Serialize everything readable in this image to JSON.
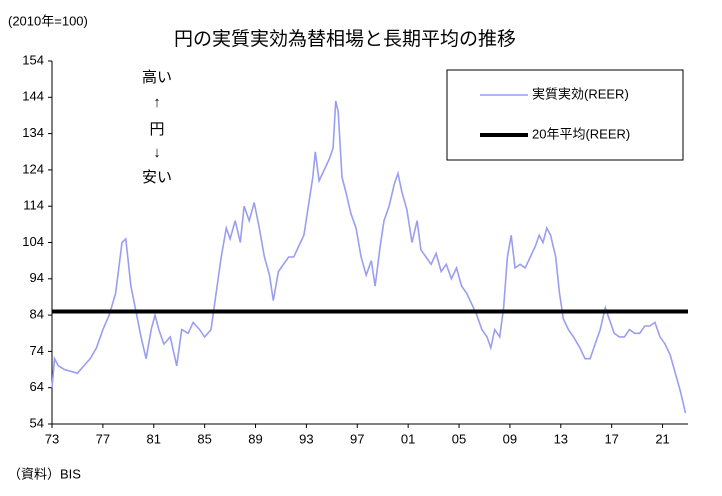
{
  "chart_data": {
    "type": "line",
    "title": "円の実質実効為替相場と長期平均の推移",
    "unit_label": "(2010年=100)",
    "source": "（資料）BIS",
    "annotations": [
      "高い",
      "↑",
      "円",
      "↓",
      "安い"
    ],
    "xlim": [
      1973,
      2023
    ],
    "xticks": [
      {
        "value": 1973,
        "label": "73"
      },
      {
        "value": 1977,
        "label": "77"
      },
      {
        "value": 1981,
        "label": "81"
      },
      {
        "value": 1985,
        "label": "85"
      },
      {
        "value": 1989,
        "label": "89"
      },
      {
        "value": 1993,
        "label": "93"
      },
      {
        "value": 1997,
        "label": "97"
      },
      {
        "value": 2001,
        "label": "01"
      },
      {
        "value": 2005,
        "label": "05"
      },
      {
        "value": 2009,
        "label": "09"
      },
      {
        "value": 2013,
        "label": "13"
      },
      {
        "value": 2017,
        "label": "17"
      },
      {
        "value": 2021,
        "label": "21"
      }
    ],
    "ylim": [
      54,
      154
    ],
    "yticks": [
      54,
      64,
      74,
      84,
      94,
      104,
      114,
      124,
      134,
      144,
      154
    ],
    "legend": "upper right",
    "series": [
      {
        "name": "実質実効(REER)",
        "color": "#9a9ef0",
        "x": [
          1973.0,
          1973.2,
          1973.5,
          1974,
          1975,
          1975.5,
          1976,
          1976.5,
          1977,
          1977.5,
          1978,
          1978.5,
          1978.8,
          1979.2,
          1979.6,
          1980.0,
          1980.4,
          1980.8,
          1981.1,
          1981.4,
          1981.8,
          1982.3,
          1982.8,
          1983.2,
          1983.7,
          1984.1,
          1984.6,
          1985.0,
          1985.5,
          1985.9,
          1986.3,
          1986.7,
          1987.0,
          1987.4,
          1987.8,
          1988.1,
          1988.5,
          1988.9,
          1989.3,
          1989.7,
          1990.1,
          1990.4,
          1990.8,
          1991.2,
          1991.6,
          1992.0,
          1992.4,
          1992.8,
          1993.2,
          1993.5,
          1993.7,
          1994.0,
          1994.4,
          1994.8,
          1995.1,
          1995.3,
          1995.5,
          1995.8,
          1996.1,
          1996.5,
          1996.9,
          1997.3,
          1997.7,
          1998.1,
          1998.4,
          1998.8,
          1999.1,
          1999.5,
          1999.9,
          2000.2,
          2000.5,
          2000.9,
          2001.3,
          2001.7,
          2002.0,
          2002.4,
          2002.8,
          2003.2,
          2003.6,
          2004.0,
          2004.4,
          2004.8,
          2005.2,
          2005.6,
          2006.0,
          2006.4,
          2006.8,
          2007.2,
          2007.5,
          2007.8,
          2008.2,
          2008.5,
          2008.8,
          2009.1,
          2009.4,
          2009.8,
          2010.2,
          2010.6,
          2011.0,
          2011.3,
          2011.6,
          2011.9,
          2012.2,
          2012.6,
          2012.9,
          2013.2,
          2013.6,
          2014.0,
          2014.5,
          2014.9,
          2015.3,
          2015.7,
          2016.1,
          2016.5,
          2016.8,
          2017.2,
          2017.6,
          2018.0,
          2018.4,
          2018.8,
          2019.2,
          2019.6,
          2020.0,
          2020.4,
          2020.8,
          2021.2,
          2021.6,
          2022.0,
          2022.4,
          2022.8
        ],
        "values": [
          64,
          72,
          70,
          69,
          68,
          70,
          72,
          75,
          80,
          84,
          90,
          104,
          105,
          92,
          85,
          78,
          72,
          80,
          84,
          80,
          76,
          78,
          70,
          80,
          79,
          82,
          80,
          78,
          80,
          90,
          100,
          108,
          105,
          110,
          104,
          114,
          110,
          115,
          108,
          100,
          95,
          88,
          96,
          98,
          100,
          100,
          103,
          106,
          115,
          122,
          129,
          121,
          124,
          127,
          130,
          143,
          140,
          122,
          118,
          112,
          108,
          100,
          95,
          99,
          92,
          103,
          110,
          114,
          120,
          123,
          118,
          113,
          104,
          110,
          102,
          100,
          98,
          101,
          96,
          98,
          94,
          97,
          92,
          90,
          87,
          84,
          80,
          78,
          75,
          80,
          78,
          86,
          100,
          106,
          97,
          98,
          97,
          100,
          103,
          106,
          104,
          108,
          106,
          100,
          90,
          83,
          80,
          78,
          75,
          72,
          72,
          76,
          80,
          86,
          83,
          79,
          78,
          78,
          80,
          79,
          79,
          81,
          81,
          82,
          78,
          76,
          73,
          68,
          63,
          57
        ]
      },
      {
        "name": "20年平均(REER)",
        "color": "#000000",
        "x": [
          1973,
          2023
        ],
        "values": [
          85,
          85
        ]
      }
    ]
  }
}
